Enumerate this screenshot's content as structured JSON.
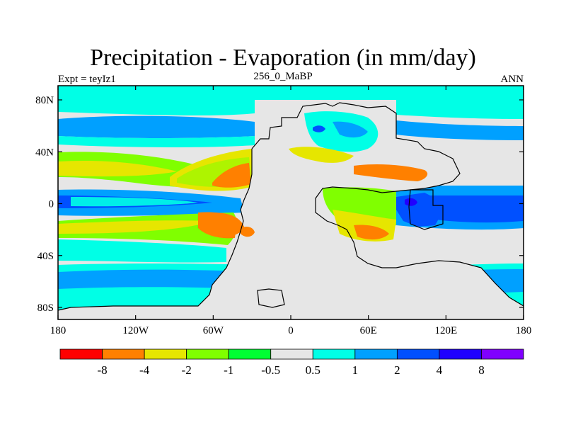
{
  "title": "Precipitation - Evaporation (in mm/day)",
  "left_label": "Expt = teyIz1",
  "center_label": "256_0_MaBP",
  "right_label": "ANN",
  "x_ticks": [
    "180",
    "120W",
    "60W",
    "0",
    "60E",
    "120E",
    "180"
  ],
  "y_ticks": [
    "80N",
    "40N",
    "0",
    "40S",
    "80S"
  ],
  "colorbar": {
    "colors": [
      "#ff0000",
      "#ff8000",
      "#e6e600",
      "#80ff00",
      "#00ff33",
      "#e6e6e6",
      "#00ffe6",
      "#00a0ff",
      "#0050ff",
      "#2000ff",
      "#8000ff"
    ],
    "labels": [
      "-8",
      "-4",
      "-2",
      "-1",
      "-0.5",
      "0.5",
      "1",
      "2",
      "4",
      "8"
    ]
  }
}
